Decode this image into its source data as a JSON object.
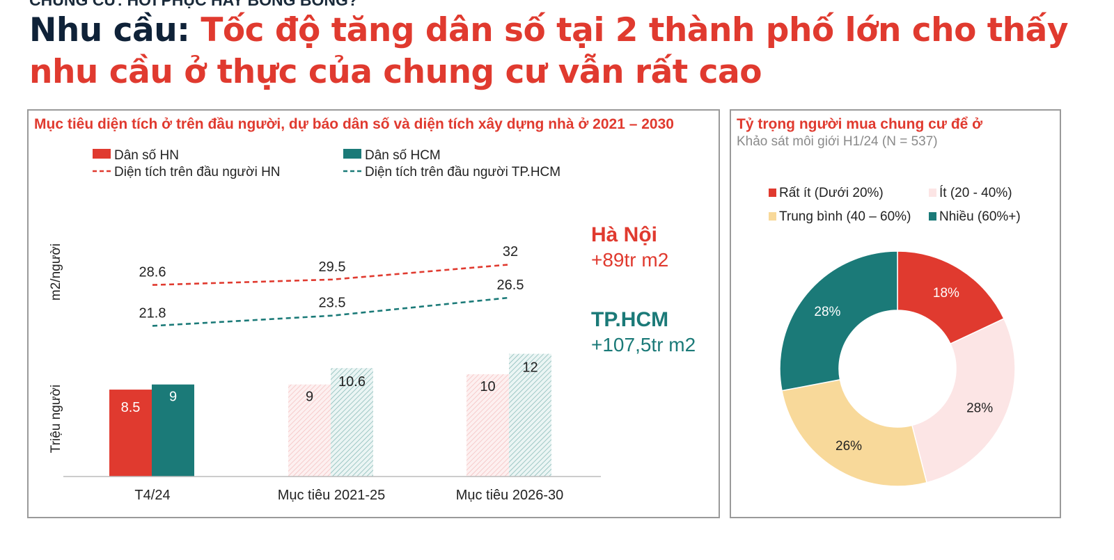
{
  "page": {
    "cut_heading": "CHUNG CƯ: HƠI PHỤC HAY BONG BÓNG?",
    "headline_prefix": "Nhu cầu:",
    "headline_rest": "Tốc độ tăng dân số tại 2 thành phố lớn cho thấy nhu cầu ở thực của chung cư vẫn rất cao"
  },
  "colors": {
    "hn_red": "#e03a2f",
    "hcm_teal": "#1b7a78",
    "light_pink": "#fce5e5",
    "light_yellow": "#f8d99a",
    "navy": "#0f2238"
  },
  "chart_data": [
    {
      "type": "bar",
      "title": "Mục tiêu diện tích ở trên đầu người, dự báo dân số và diện tích xây dựng nhà ở 2021 – 2030",
      "categories": [
        "T4/24",
        "Mục tiêu 2021-25",
        "Mục tiêu 2026-30"
      ],
      "series": [
        {
          "name": "Dân số HN",
          "kind": "bar",
          "values": [
            8.5,
            9,
            10
          ],
          "data_labels": [
            "8.5",
            "9",
            "10"
          ]
        },
        {
          "name": "Dân số HCM",
          "kind": "bar",
          "values": [
            9,
            10.6,
            12
          ],
          "data_labels": [
            "9",
            "10.6",
            "12"
          ]
        },
        {
          "name": "Diện tích trên đầu người HN",
          "kind": "dashed-line",
          "values": [
            28.6,
            29.5,
            32
          ],
          "data_labels": [
            "28.6",
            "29.5",
            "32"
          ]
        },
        {
          "name": "Diện tích trên đầu người TP.HCM",
          "kind": "dashed-line",
          "values": [
            21.8,
            23.5,
            26.5
          ],
          "data_labels": [
            "21.8",
            "23.5",
            "26.5"
          ]
        }
      ],
      "ylabel_top": "m2/người",
      "ylabel_bottom": "Triệu người",
      "bar_ylim": [
        0,
        13
      ],
      "line_ylim": [
        20,
        33
      ],
      "forecast_hatched": [
        "Mục tiêu 2021-25",
        "Mục tiêu 2026-30"
      ],
      "legend_position": "top-left",
      "annotations": [
        {
          "name": "Hà Nội",
          "value": "+89tr m2"
        },
        {
          "name": "TP.HCM",
          "value": "+107,5tr m2"
        }
      ]
    },
    {
      "type": "pie",
      "donut": true,
      "title": "Tỷ trọng người mua chung cư để ở",
      "subtitle": "Khảo sát môi giới H1/24 (N = 537)",
      "slices": [
        {
          "label": "Rất ít (Dưới 20%)",
          "value": 18,
          "display": "18%"
        },
        {
          "label": "Ít (20 - 40%)",
          "value": 28,
          "display": "28%"
        },
        {
          "label": "Trung bình (40 – 60%)",
          "value": 26,
          "display": "26%"
        },
        {
          "label": "Nhiều (60%+)",
          "value": 28,
          "display": "28%"
        }
      ],
      "legend_position": "top"
    }
  ]
}
